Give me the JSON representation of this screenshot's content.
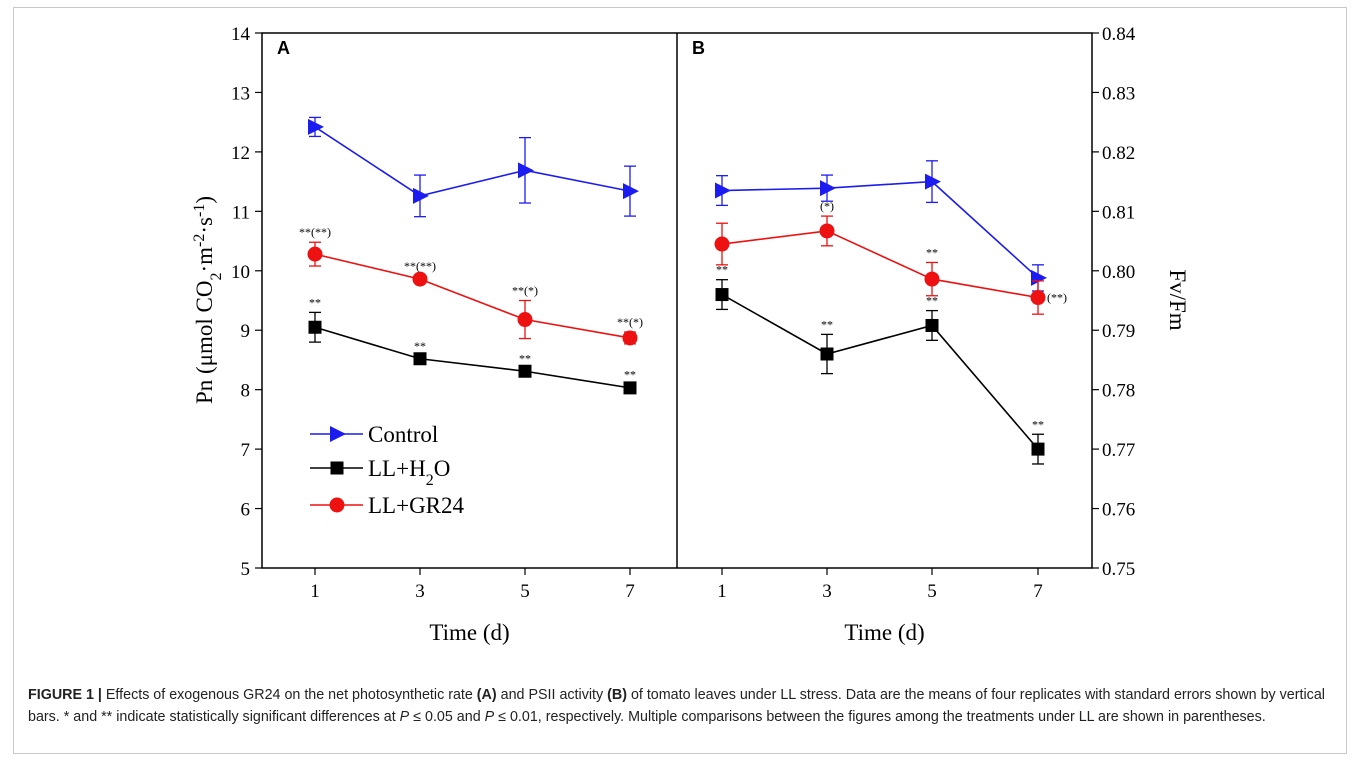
{
  "chart_data": [
    {
      "panel": "A",
      "type": "line",
      "x": [
        1,
        3,
        5,
        7
      ],
      "xlabel": "Time (d)",
      "ylabel": "Pn (μmol CO2·m-2·s-1)",
      "ylabel_parts": {
        "pre": "Pn (μmol CO",
        "sub": "2",
        "mid1": "·m",
        "sup1": "-2",
        "mid2": "·s",
        "sup2": "-1",
        "post": ")"
      },
      "ylim": [
        5,
        14
      ],
      "yticks": [
        "5",
        "6",
        "7",
        "8",
        "9",
        "10",
        "11",
        "12",
        "13",
        "14"
      ],
      "xticks": [
        "1",
        "3",
        "5",
        "7"
      ],
      "series": [
        {
          "name": "Control",
          "color": "#1c1cf0",
          "marker": "triangle-right",
          "values": [
            12.42,
            11.26,
            11.69,
            11.34
          ],
          "errors": [
            0.16,
            0.35,
            0.55,
            0.42
          ],
          "labels": [
            "",
            "",
            "",
            ""
          ]
        },
        {
          "name": "LL+H2O",
          "color": "#000000",
          "marker": "square",
          "values": [
            9.05,
            8.52,
            8.31,
            8.03
          ],
          "errors": [
            0.25,
            0.05,
            0.05,
            0.06
          ],
          "labels": [
            "**",
            "**",
            "**",
            "**"
          ]
        },
        {
          "name": "LL+GR24",
          "color": "#ee1111",
          "marker": "circle",
          "values": [
            10.28,
            9.86,
            9.18,
            8.87
          ],
          "errors": [
            0.2,
            0.05,
            0.32,
            0.1
          ],
          "labels": [
            "**(**)",
            "**(**)",
            "**(*)",
            "**(*)"
          ]
        }
      ]
    },
    {
      "panel": "B",
      "type": "line",
      "x": [
        1,
        3,
        5,
        7
      ],
      "xlabel": "Time (d)",
      "ylabel": "Fv/Fm",
      "ylim": [
        0.75,
        0.84
      ],
      "yticks": [
        "0.75",
        "0.76",
        "0.77",
        "0.78",
        "0.79",
        "0.80",
        "0.81",
        "0.82",
        "0.83",
        "0.84"
      ],
      "xticks": [
        "1",
        "3",
        "5",
        "7"
      ],
      "series": [
        {
          "name": "Control",
          "color": "#1c1cf0",
          "marker": "triangle-right",
          "values": [
            0.8135,
            0.8139,
            0.815,
            0.7988
          ],
          "errors": [
            0.0025,
            0.0022,
            0.0035,
            0.0022
          ],
          "labels": [
            "",
            "",
            "",
            ""
          ]
        },
        {
          "name": "LL+H2O",
          "color": "#000000",
          "marker": "square",
          "values": [
            0.796,
            0.786,
            0.7908,
            0.77
          ],
          "errors": [
            0.0025,
            0.0033,
            0.0025,
            0.0025
          ],
          "labels": [
            "**",
            "**",
            "**",
            "**"
          ]
        },
        {
          "name": "LL+GR24",
          "color": "#ee1111",
          "marker": "circle",
          "values": [
            0.8045,
            0.8067,
            0.7986,
            0.7955
          ],
          "errors": [
            0.0035,
            0.0025,
            0.0028,
            0.0028
          ],
          "labels": [
            "",
            "(*)",
            "**",
            "(**)"
          ]
        }
      ]
    }
  ],
  "legend": {
    "items": [
      {
        "label_main": "Control",
        "label_sub": "",
        "label_end": "",
        "color": "#1c1cf0",
        "marker": "triangle-right"
      },
      {
        "label_main": "LL+H",
        "label_sub": "2",
        "label_end": "O",
        "color": "#000000",
        "marker": "square"
      },
      {
        "label_main": "LL+GR24",
        "label_sub": "",
        "label_end": "",
        "color": "#ee1111",
        "marker": "circle"
      }
    ]
  },
  "caption": {
    "figure_label": "FIGURE 1 |",
    "text_1": " Effects of exogenous GR24 on the net photosynthetic rate ",
    "panel_a": "(A)",
    "text_2": " and PSII activity ",
    "panel_b": "(B)",
    "text_3": " of tomato leaves under LL stress. Data are the means of four replicates with standard errors shown by vertical bars. * and ** indicate statistically significant differences at ",
    "p_symbol_1": "P",
    "text_4": " ≤ 0.05 and ",
    "p_symbol_2": "P",
    "text_5": " ≤ 0.01, respectively. Multiple comparisons between the figures among the treatments under LL are shown in parentheses."
  }
}
